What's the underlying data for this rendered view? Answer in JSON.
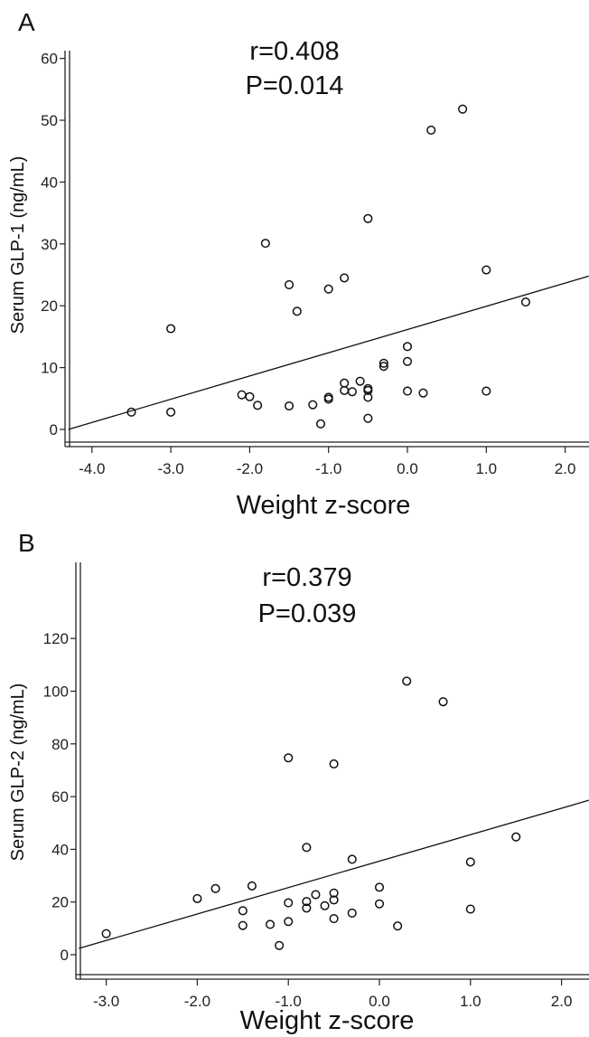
{
  "chart_data": [
    {
      "type": "scatter",
      "panel": "A",
      "annotation": [
        "r=0.408",
        "P=0.014"
      ],
      "xlabel": "Weight z-score",
      "ylabel": "Serum GLP-1 (ng/mL)",
      "xlim": [
        -4.3,
        2.3
      ],
      "ylim": [
        -3,
        62
      ],
      "xticks": [
        -4.0,
        -3.0,
        -2.0,
        -1.0,
        0.0,
        1.0,
        2.0
      ],
      "xtick_labels": [
        "-4.0",
        "-3.0",
        "-2.0",
        "-1.0",
        "0.0",
        "1.0",
        "2.0"
      ],
      "yticks": [
        0,
        10,
        20,
        30,
        40,
        50,
        60
      ],
      "ytick_labels": [
        "0",
        "10",
        "20",
        "30",
        "40",
        "50",
        "60"
      ],
      "grid": false,
      "fit_line": {
        "x": [
          -4.3,
          2.3
        ],
        "y": [
          0,
          24.8
        ]
      },
      "points": [
        {
          "x": -3.5,
          "y": 2.8
        },
        {
          "x": -3.0,
          "y": 2.8
        },
        {
          "x": -3.0,
          "y": 16.3
        },
        {
          "x": -2.1,
          "y": 5.6
        },
        {
          "x": -2.0,
          "y": 5.3
        },
        {
          "x": -1.9,
          "y": 3.9
        },
        {
          "x": -1.8,
          "y": 30.1
        },
        {
          "x": -1.5,
          "y": 23.4
        },
        {
          "x": -1.5,
          "y": 3.8
        },
        {
          "x": -1.4,
          "y": 19.1
        },
        {
          "x": -1.2,
          "y": 4.0
        },
        {
          "x": -1.1,
          "y": 0.9
        },
        {
          "x": -1.0,
          "y": 5.2
        },
        {
          "x": -1.0,
          "y": 4.9
        },
        {
          "x": -1.0,
          "y": 22.7
        },
        {
          "x": -0.8,
          "y": 24.5
        },
        {
          "x": -0.8,
          "y": 7.5
        },
        {
          "x": -0.8,
          "y": 6.3
        },
        {
          "x": -0.7,
          "y": 6.1
        },
        {
          "x": -0.6,
          "y": 7.8
        },
        {
          "x": -0.5,
          "y": 6.6
        },
        {
          "x": -0.5,
          "y": 6.3
        },
        {
          "x": -0.5,
          "y": 5.2
        },
        {
          "x": -0.5,
          "y": 1.8
        },
        {
          "x": -0.5,
          "y": 34.1
        },
        {
          "x": -0.3,
          "y": 10.7
        },
        {
          "x": -0.3,
          "y": 10.2
        },
        {
          "x": 0.0,
          "y": 13.4
        },
        {
          "x": 0.0,
          "y": 11.0
        },
        {
          "x": 0.0,
          "y": 6.2
        },
        {
          "x": 0.2,
          "y": 5.9
        },
        {
          "x": 0.3,
          "y": 48.4
        },
        {
          "x": 0.7,
          "y": 51.8
        },
        {
          "x": 1.0,
          "y": 25.8
        },
        {
          "x": 1.0,
          "y": 6.2
        },
        {
          "x": 1.5,
          "y": 20.6
        }
      ]
    },
    {
      "type": "scatter",
      "panel": "B",
      "annotation": [
        "r=0.379",
        "P=0.039"
      ],
      "xlabel": "Weight z-score",
      "ylabel": "Serum GLP-2 (ng/mL)",
      "xlim": [
        -3.3,
        2.3
      ],
      "ylim": [
        -7,
        126
      ],
      "xticks": [
        -3.0,
        -2.0,
        -1.0,
        0.0,
        1.0,
        2.0
      ],
      "xtick_labels": [
        "-3.0",
        "-2.0",
        "-1.0",
        "0.0",
        "1.0",
        "2.0"
      ],
      "yticks": [
        0,
        20,
        40,
        60,
        80,
        100,
        120
      ],
      "ytick_labels": [
        "0",
        "20",
        "40",
        "60",
        "80",
        "100",
        "120"
      ],
      "grid": false,
      "fit_line": {
        "x": [
          -3.3,
          2.3
        ],
        "y": [
          2.4,
          58.6
        ]
      },
      "points": [
        {
          "x": -3.0,
          "y": 8.0
        },
        {
          "x": -2.0,
          "y": 21.3
        },
        {
          "x": -1.8,
          "y": 25.1
        },
        {
          "x": -1.5,
          "y": 16.7
        },
        {
          "x": -1.5,
          "y": 11.1
        },
        {
          "x": -1.4,
          "y": 26.1
        },
        {
          "x": -1.2,
          "y": 11.5
        },
        {
          "x": -1.1,
          "y": 3.5
        },
        {
          "x": -1.0,
          "y": 19.7
        },
        {
          "x": -1.0,
          "y": 12.6
        },
        {
          "x": -1.0,
          "y": 74.7
        },
        {
          "x": -0.8,
          "y": 40.7
        },
        {
          "x": -0.8,
          "y": 20.2
        },
        {
          "x": -0.8,
          "y": 17.7
        },
        {
          "x": -0.7,
          "y": 22.8
        },
        {
          "x": -0.6,
          "y": 18.6
        },
        {
          "x": -0.5,
          "y": 23.4
        },
        {
          "x": -0.5,
          "y": 20.8
        },
        {
          "x": -0.5,
          "y": 13.7
        },
        {
          "x": -0.5,
          "y": 72.4
        },
        {
          "x": -0.3,
          "y": 36.2
        },
        {
          "x": -0.3,
          "y": 15.8
        },
        {
          "x": 0.0,
          "y": 25.6
        },
        {
          "x": 0.0,
          "y": 19.3
        },
        {
          "x": 0.2,
          "y": 10.9
        },
        {
          "x": 0.3,
          "y": 103.8
        },
        {
          "x": 0.7,
          "y": 96.0
        },
        {
          "x": 1.0,
          "y": 35.2
        },
        {
          "x": 1.0,
          "y": 17.3
        },
        {
          "x": 1.5,
          "y": 44.7
        }
      ]
    }
  ]
}
